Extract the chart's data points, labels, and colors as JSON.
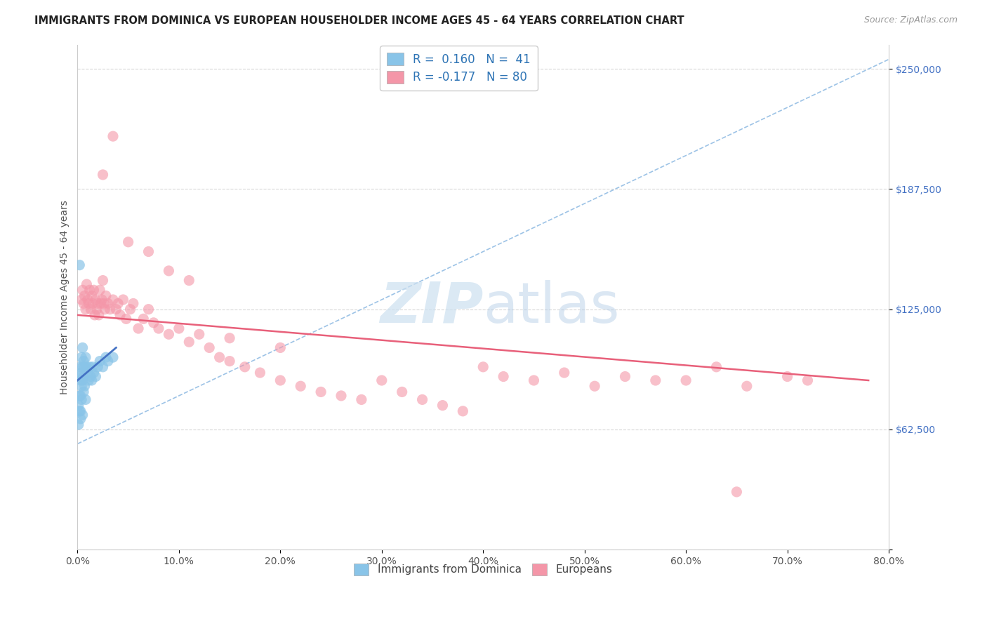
{
  "title": "IMMIGRANTS FROM DOMINICA VS EUROPEAN HOUSEHOLDER INCOME AGES 45 - 64 YEARS CORRELATION CHART",
  "source": "Source: ZipAtlas.com",
  "ylabel": "Householder Income Ages 45 - 64 years",
  "xlim": [
    0.0,
    0.8
  ],
  "ylim": [
    0,
    262500
  ],
  "yticks": [
    0,
    62500,
    125000,
    187500,
    250000
  ],
  "ytick_labels": [
    "",
    "$62,500",
    "$125,000",
    "$187,500",
    "$250,000"
  ],
  "xticks": [
    0.0,
    0.1,
    0.2,
    0.3,
    0.4,
    0.5,
    0.6,
    0.7,
    0.8
  ],
  "xtick_labels": [
    "0.0%",
    "10.0%",
    "20.0%",
    "30.0%",
    "40.0%",
    "50.0%",
    "60.0%",
    "70.0%",
    "80.0%"
  ],
  "blue_dot_color": "#89c4e8",
  "pink_dot_color": "#f496a8",
  "trend_blue_color": "#4472c4",
  "trend_pink_color": "#e8607a",
  "trend_blue_dash_color": "#9dc3e6",
  "watermark_color": "#cce0f0",
  "legend_label1": "R =  0.160   N =  41",
  "legend_label2": "R = -0.177   N = 80",
  "legend_color": "#2e74b5",
  "background_color": "#ffffff",
  "grid_color": "#d8d8d8",
  "blue_scatter_x": [
    0.001,
    0.001,
    0.002,
    0.002,
    0.002,
    0.003,
    0.003,
    0.003,
    0.003,
    0.003,
    0.004,
    0.004,
    0.004,
    0.004,
    0.005,
    0.005,
    0.005,
    0.005,
    0.006,
    0.006,
    0.006,
    0.007,
    0.007,
    0.008,
    0.008,
    0.009,
    0.01,
    0.011,
    0.012,
    0.013,
    0.014,
    0.015,
    0.016,
    0.018,
    0.02,
    0.022,
    0.025,
    0.028,
    0.03,
    0.035,
    0.002
  ],
  "blue_scatter_y": [
    75000,
    65000,
    90000,
    80000,
    72000,
    95000,
    88000,
    80000,
    72000,
    68000,
    100000,
    92000,
    85000,
    78000,
    105000,
    95000,
    88000,
    70000,
    98000,
    90000,
    82000,
    95000,
    85000,
    100000,
    78000,
    95000,
    92000,
    88000,
    95000,
    90000,
    88000,
    95000,
    92000,
    90000,
    95000,
    98000,
    95000,
    100000,
    98000,
    100000,
    148000
  ],
  "pink_scatter_x": [
    0.004,
    0.005,
    0.006,
    0.007,
    0.008,
    0.009,
    0.01,
    0.011,
    0.012,
    0.013,
    0.014,
    0.015,
    0.016,
    0.017,
    0.018,
    0.019,
    0.02,
    0.021,
    0.022,
    0.023,
    0.024,
    0.025,
    0.026,
    0.027,
    0.028,
    0.03,
    0.032,
    0.035,
    0.038,
    0.04,
    0.042,
    0.045,
    0.048,
    0.052,
    0.055,
    0.06,
    0.065,
    0.07,
    0.075,
    0.08,
    0.09,
    0.1,
    0.11,
    0.12,
    0.13,
    0.14,
    0.15,
    0.165,
    0.18,
    0.2,
    0.22,
    0.24,
    0.26,
    0.28,
    0.3,
    0.32,
    0.34,
    0.36,
    0.38,
    0.4,
    0.42,
    0.45,
    0.48,
    0.51,
    0.54,
    0.57,
    0.6,
    0.63,
    0.66,
    0.7,
    0.72,
    0.025,
    0.035,
    0.05,
    0.07,
    0.09,
    0.11,
    0.15,
    0.2,
    0.65
  ],
  "pink_scatter_y": [
    130000,
    135000,
    128000,
    132000,
    125000,
    138000,
    130000,
    128000,
    135000,
    125000,
    132000,
    128000,
    135000,
    122000,
    130000,
    125000,
    128000,
    122000,
    135000,
    128000,
    130000,
    140000,
    128000,
    125000,
    132000,
    128000,
    125000,
    130000,
    125000,
    128000,
    122000,
    130000,
    120000,
    125000,
    128000,
    115000,
    120000,
    125000,
    118000,
    115000,
    112000,
    115000,
    108000,
    112000,
    105000,
    100000,
    98000,
    95000,
    92000,
    88000,
    85000,
    82000,
    80000,
    78000,
    88000,
    82000,
    78000,
    75000,
    72000,
    95000,
    90000,
    88000,
    92000,
    85000,
    90000,
    88000,
    88000,
    95000,
    85000,
    90000,
    88000,
    195000,
    215000,
    160000,
    155000,
    145000,
    140000,
    110000,
    105000,
    30000
  ]
}
